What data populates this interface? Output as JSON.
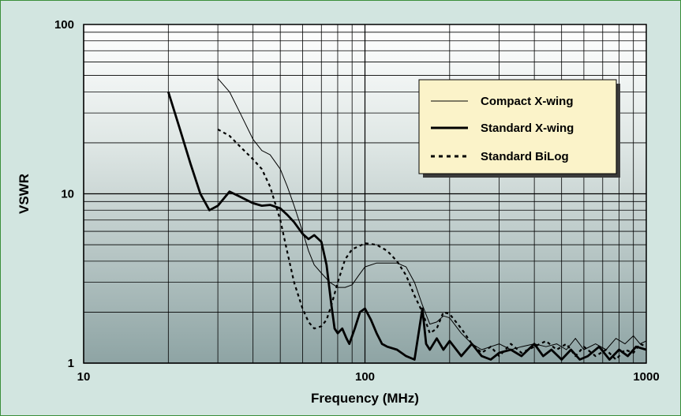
{
  "chart_data": {
    "type": "line",
    "title": "",
    "xlabel": "Frequency (MHz)",
    "ylabel": "VSWR",
    "xscale": "log",
    "yscale": "log",
    "xlim": [
      10,
      1000
    ],
    "ylim": [
      1,
      100
    ],
    "x_ticks": [
      {
        "value": 10,
        "label": "10"
      },
      {
        "value": 100,
        "label": "100"
      },
      {
        "value": 1000,
        "label": "1000"
      }
    ],
    "y_ticks": [
      {
        "value": 1,
        "label": "1"
      },
      {
        "value": 10,
        "label": "10"
      },
      {
        "value": 100,
        "label": "100"
      }
    ],
    "grid": true,
    "legend_position": "top-right",
    "series": [
      {
        "name": "Compact X-wing",
        "style": "thin",
        "color": "#000000",
        "points": [
          [
            30,
            48
          ],
          [
            33,
            40
          ],
          [
            36,
            30
          ],
          [
            40,
            21
          ],
          [
            43,
            18
          ],
          [
            46,
            17
          ],
          [
            50,
            14
          ],
          [
            53,
            11
          ],
          [
            56,
            8.5
          ],
          [
            60,
            6
          ],
          [
            63,
            4.6
          ],
          [
            66,
            3.8
          ],
          [
            70,
            3.4
          ],
          [
            75,
            3
          ],
          [
            80,
            2.8
          ],
          [
            85,
            2.8
          ],
          [
            90,
            2.9
          ],
          [
            95,
            3.3
          ],
          [
            100,
            3.7
          ],
          [
            110,
            3.9
          ],
          [
            120,
            3.9
          ],
          [
            130,
            3.9
          ],
          [
            140,
            3.7
          ],
          [
            150,
            3
          ],
          [
            160,
            2.2
          ],
          [
            170,
            1.7
          ],
          [
            180,
            1.75
          ],
          [
            190,
            1.9
          ],
          [
            200,
            1.85
          ],
          [
            220,
            1.5
          ],
          [
            240,
            1.3
          ],
          [
            260,
            1.2
          ],
          [
            280,
            1.25
          ],
          [
            300,
            1.3
          ],
          [
            330,
            1.2
          ],
          [
            360,
            1.25
          ],
          [
            400,
            1.3
          ],
          [
            440,
            1.25
          ],
          [
            480,
            1.3
          ],
          [
            520,
            1.2
          ],
          [
            560,
            1.4
          ],
          [
            600,
            1.2
          ],
          [
            660,
            1.3
          ],
          [
            720,
            1.2
          ],
          [
            780,
            1.4
          ],
          [
            840,
            1.3
          ],
          [
            900,
            1.45
          ],
          [
            950,
            1.3
          ],
          [
            1000,
            1.35
          ]
        ]
      },
      {
        "name": "Standard X-wing",
        "style": "thick",
        "color": "#000000",
        "points": [
          [
            20,
            40
          ],
          [
            22,
            24
          ],
          [
            24,
            15
          ],
          [
            26,
            10
          ],
          [
            28,
            8
          ],
          [
            30,
            8.5
          ],
          [
            33,
            10.3
          ],
          [
            36,
            9.6
          ],
          [
            40,
            8.8
          ],
          [
            43,
            8.5
          ],
          [
            46,
            8.6
          ],
          [
            50,
            8.2
          ],
          [
            53,
            7.5
          ],
          [
            56,
            6.8
          ],
          [
            60,
            5.8
          ],
          [
            63,
            5.4
          ],
          [
            66,
            5.7
          ],
          [
            70,
            5.2
          ],
          [
            73,
            3.8
          ],
          [
            76,
            2.2
          ],
          [
            78,
            1.6
          ],
          [
            80,
            1.5
          ],
          [
            83,
            1.6
          ],
          [
            86,
            1.4
          ],
          [
            88,
            1.3
          ],
          [
            92,
            1.6
          ],
          [
            96,
            2
          ],
          [
            100,
            2.1
          ],
          [
            105,
            1.8
          ],
          [
            110,
            1.5
          ],
          [
            115,
            1.3
          ],
          [
            120,
            1.25
          ],
          [
            130,
            1.2
          ],
          [
            140,
            1.1
          ],
          [
            150,
            1.05
          ],
          [
            160,
            2.1
          ],
          [
            165,
            1.3
          ],
          [
            170,
            1.2
          ],
          [
            180,
            1.4
          ],
          [
            190,
            1.2
          ],
          [
            200,
            1.35
          ],
          [
            220,
            1.1
          ],
          [
            240,
            1.3
          ],
          [
            260,
            1.1
          ],
          [
            280,
            1.05
          ],
          [
            300,
            1.15
          ],
          [
            330,
            1.2
          ],
          [
            360,
            1.1
          ],
          [
            400,
            1.3
          ],
          [
            430,
            1.1
          ],
          [
            460,
            1.2
          ],
          [
            500,
            1.05
          ],
          [
            540,
            1.2
          ],
          [
            580,
            1.05
          ],
          [
            620,
            1.1
          ],
          [
            680,
            1.25
          ],
          [
            740,
            1.05
          ],
          [
            800,
            1.2
          ],
          [
            860,
            1.1
          ],
          [
            920,
            1.25
          ],
          [
            1000,
            1.2
          ]
        ]
      },
      {
        "name": "Standard BiLog",
        "style": "dotted",
        "color": "#000000",
        "points": [
          [
            30,
            24
          ],
          [
            33,
            22
          ],
          [
            36,
            19
          ],
          [
            40,
            16
          ],
          [
            43,
            14
          ],
          [
            46,
            11
          ],
          [
            50,
            7
          ],
          [
            53,
            4.5
          ],
          [
            56,
            3
          ],
          [
            60,
            2.1
          ],
          [
            63,
            1.75
          ],
          [
            66,
            1.6
          ],
          [
            70,
            1.65
          ],
          [
            73,
            1.8
          ],
          [
            76,
            2.2
          ],
          [
            80,
            3
          ],
          [
            85,
            4.1
          ],
          [
            90,
            4.7
          ],
          [
            95,
            4.9
          ],
          [
            100,
            5.1
          ],
          [
            110,
            5
          ],
          [
            120,
            4.6
          ],
          [
            130,
            4
          ],
          [
            140,
            3.3
          ],
          [
            150,
            2.5
          ],
          [
            160,
            2
          ],
          [
            170,
            1.5
          ],
          [
            180,
            1.6
          ],
          [
            190,
            2
          ],
          [
            200,
            1.95
          ],
          [
            220,
            1.6
          ],
          [
            240,
            1.3
          ],
          [
            260,
            1.15
          ],
          [
            280,
            1.25
          ],
          [
            300,
            1.1
          ],
          [
            330,
            1.3
          ],
          [
            360,
            1.15
          ],
          [
            400,
            1.25
          ],
          [
            440,
            1.35
          ],
          [
            480,
            1.2
          ],
          [
            520,
            1.3
          ],
          [
            560,
            1.1
          ],
          [
            600,
            1.25
          ],
          [
            660,
            1.1
          ],
          [
            720,
            1.2
          ],
          [
            780,
            1.05
          ],
          [
            840,
            1.2
          ],
          [
            900,
            1.15
          ],
          [
            950,
            1.3
          ],
          [
            1000,
            1.25
          ]
        ]
      }
    ]
  }
}
